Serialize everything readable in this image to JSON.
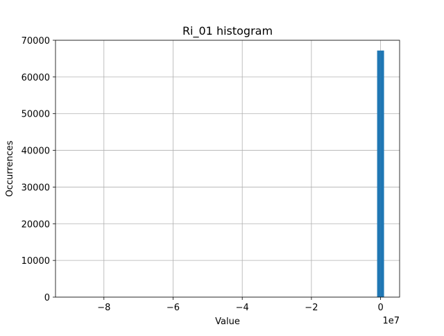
{
  "chart_data": {
    "type": "bar",
    "title": "Ri_01 histogram",
    "xlabel": "Value",
    "ylabel": "Occurrences",
    "x_offset_label": "1e7",
    "xlim": [
      -9.4,
      0.55
    ],
    "ylim": [
      0,
      70000
    ],
    "grid": true,
    "bar_color": "#1f77b4",
    "x_ticks": [
      {
        "value": -8,
        "label": "−8"
      },
      {
        "value": -6,
        "label": "−6"
      },
      {
        "value": -4,
        "label": "−4"
      },
      {
        "value": -2,
        "label": "−2"
      },
      {
        "value": 0,
        "label": "0"
      }
    ],
    "y_ticks": [
      {
        "value": 0,
        "label": "0"
      },
      {
        "value": 10000,
        "label": "10000"
      },
      {
        "value": 20000,
        "label": "20000"
      },
      {
        "value": 30000,
        "label": "30000"
      },
      {
        "value": 40000,
        "label": "40000"
      },
      {
        "value": 50000,
        "label": "50000"
      },
      {
        "value": 60000,
        "label": "60000"
      },
      {
        "value": 70000,
        "label": "70000"
      }
    ],
    "bins": [
      {
        "x0": -0.1,
        "x1": 0.0,
        "count": 67200
      },
      {
        "x0": 0.0,
        "x1": 0.1,
        "count": 67200
      }
    ]
  }
}
